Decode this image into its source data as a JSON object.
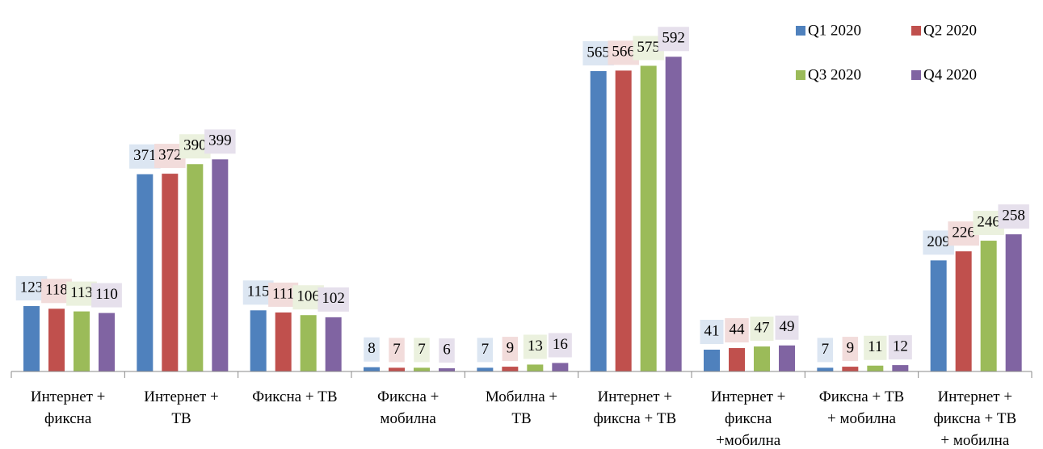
{
  "chart_data": {
    "type": "bar",
    "categories": [
      "Интернет +\nфиксна",
      "Интернет +\nТВ",
      "Фиксна + ТВ",
      "Фиксна +\nмобилна",
      "Мобилна +\nТВ",
      "Интернет +\nфиксна + ТВ",
      "Интернет +\nфиксна\n+мобилна",
      "Фиксна + ТВ\n+ мобилна",
      "Интернет +\nфиксна + ТВ\n+ мобилна"
    ],
    "series": [
      {
        "name": "Q1 2020",
        "color": "#4f81bd",
        "label_bg": "#dce6f2",
        "values": [
          123,
          371,
          115,
          8,
          7,
          565,
          41,
          7,
          209
        ]
      },
      {
        "name": "Q2 2020",
        "color": "#c0504d",
        "label_bg": "#f2dcdb",
        "values": [
          118,
          372,
          111,
          7,
          9,
          566,
          44,
          9,
          226
        ]
      },
      {
        "name": "Q3 2020",
        "color": "#9bbb59",
        "label_bg": "#ebf1de",
        "values": [
          113,
          390,
          106,
          7,
          13,
          575,
          47,
          11,
          246
        ]
      },
      {
        "name": "Q4 2020",
        "color": "#8064a2",
        "label_bg": "#e6e0ec",
        "values": [
          110,
          399,
          102,
          6,
          16,
          592,
          49,
          12,
          258
        ]
      }
    ],
    "ylim": [
      0,
      600
    ],
    "legend": "top-right"
  }
}
